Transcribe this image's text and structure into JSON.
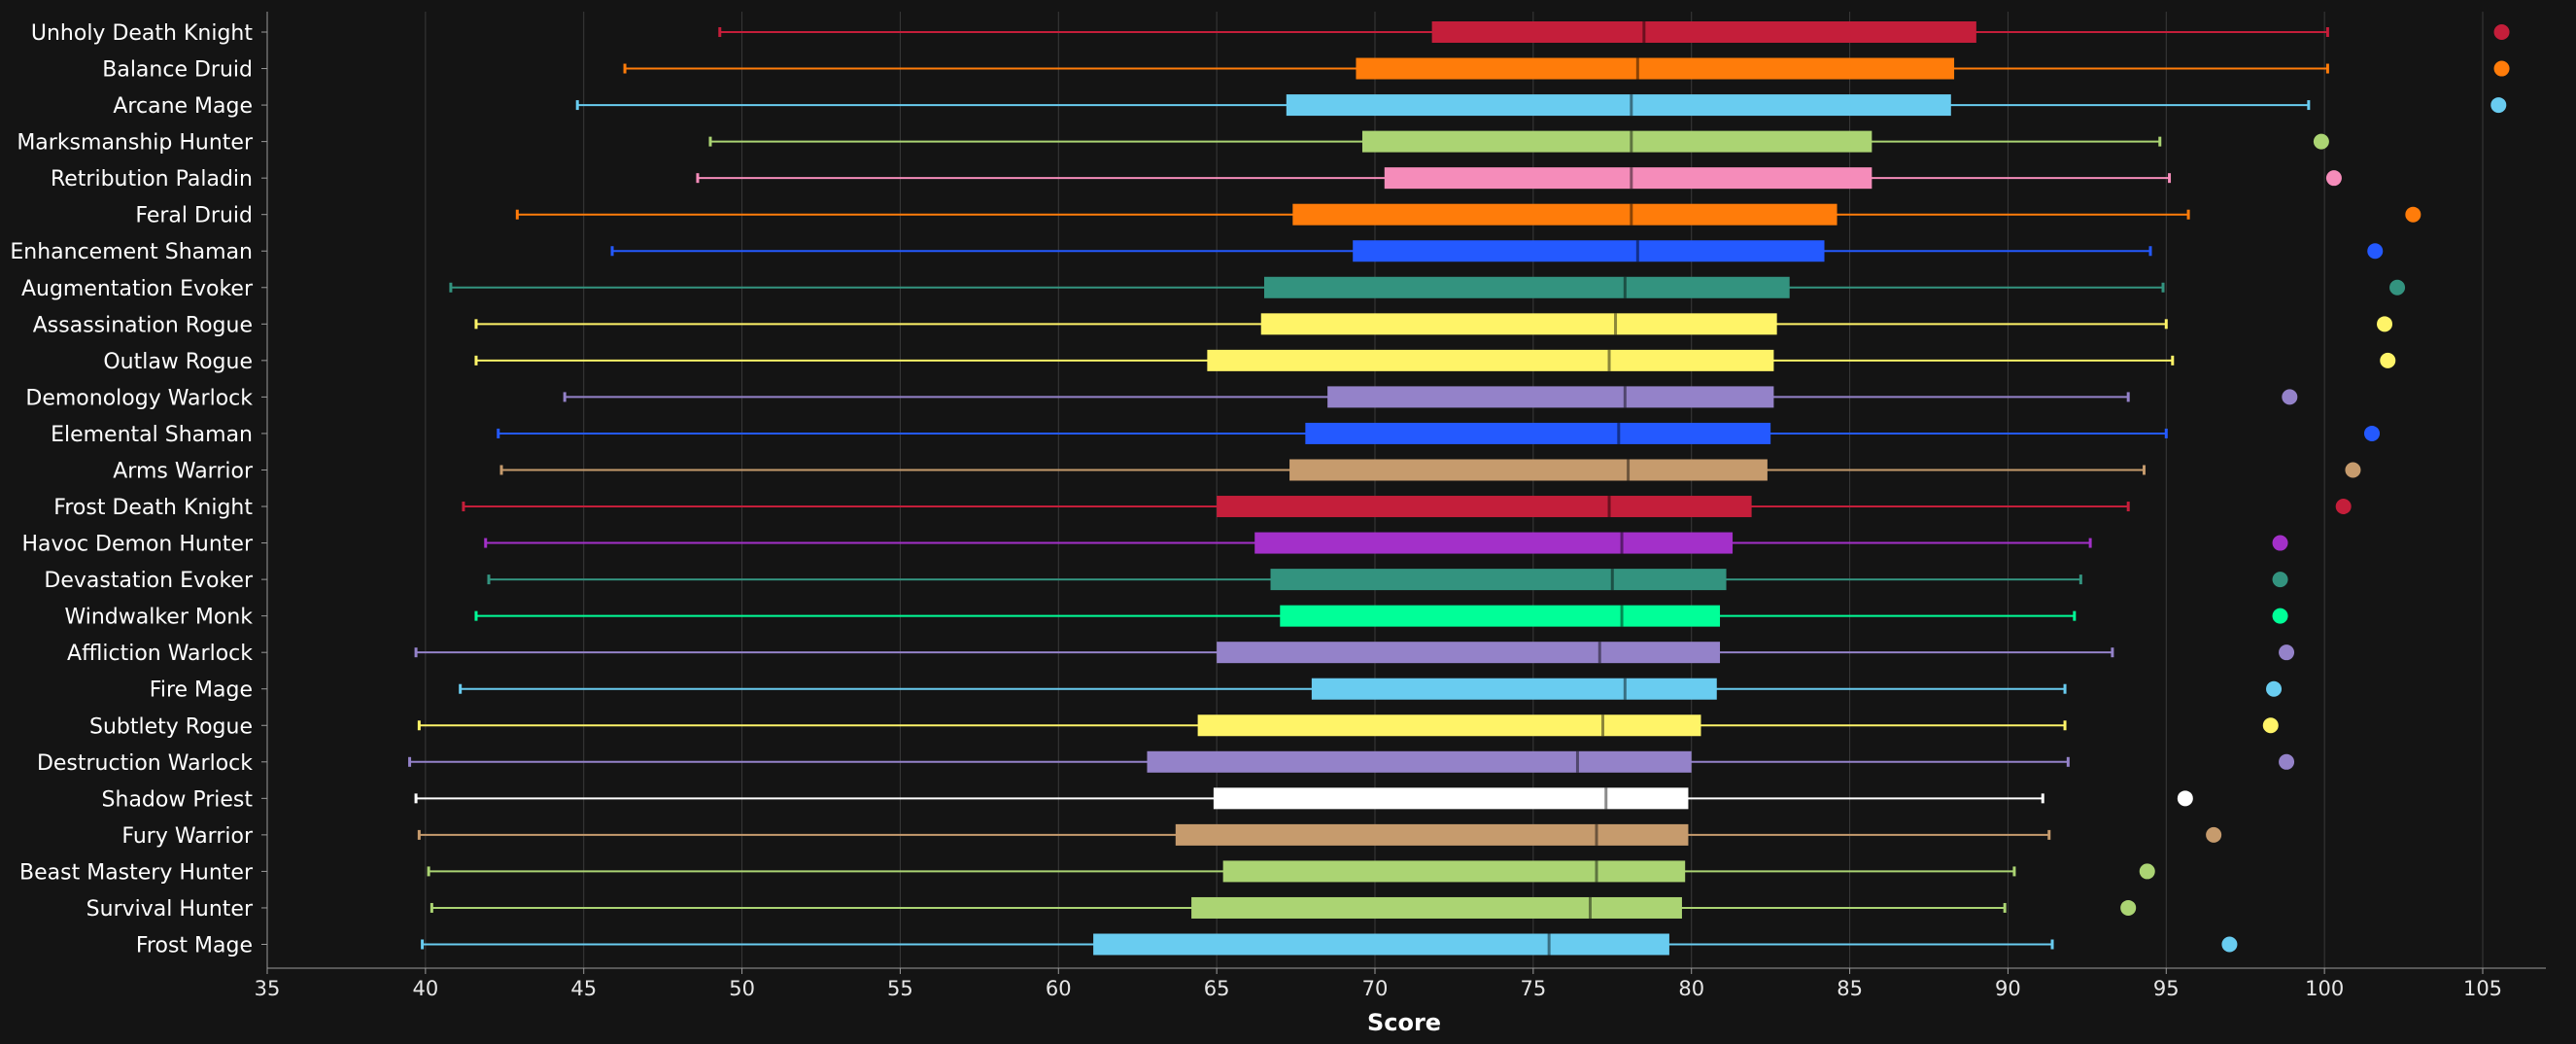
{
  "chart_data": {
    "type": "box",
    "xlabel": "Score",
    "xlim": [
      35,
      107
    ],
    "xticks": [
      35,
      40,
      45,
      50,
      55,
      60,
      65,
      70,
      75,
      80,
      85,
      90,
      95,
      100,
      105
    ],
    "grid": "vertical",
    "series": [
      {
        "name": "Unholy Death Knight",
        "min": 49.3,
        "q1": 71.8,
        "median": 78.5,
        "q3": 89.0,
        "max": 100.1,
        "outlier": 105.6,
        "color": "#C41E3A"
      },
      {
        "name": "Balance Druid",
        "min": 46.3,
        "q1": 69.4,
        "median": 78.3,
        "q3": 88.3,
        "max": 100.1,
        "outlier": 105.6,
        "color": "#FF7C0A"
      },
      {
        "name": "Arcane Mage",
        "min": 44.8,
        "q1": 67.2,
        "median": 78.1,
        "q3": 88.2,
        "max": 99.5,
        "outlier": 105.5,
        "color": "#69CCF0"
      },
      {
        "name": "Marksmanship Hunter",
        "min": 49.0,
        "q1": 69.6,
        "median": 78.1,
        "q3": 85.7,
        "max": 94.8,
        "outlier": 99.9,
        "color": "#ABD473"
      },
      {
        "name": "Retribution Paladin",
        "min": 48.6,
        "q1": 70.3,
        "median": 78.1,
        "q3": 85.7,
        "max": 95.1,
        "outlier": 100.3,
        "color": "#F58CBA"
      },
      {
        "name": "Feral Druid",
        "min": 42.9,
        "q1": 67.4,
        "median": 78.1,
        "q3": 84.6,
        "max": 95.7,
        "outlier": 102.8,
        "color": "#FF7C0A"
      },
      {
        "name": "Enhancement Shaman",
        "min": 45.9,
        "q1": 69.3,
        "median": 78.3,
        "q3": 84.2,
        "max": 94.5,
        "outlier": 101.6,
        "color": "#2459FF"
      },
      {
        "name": "Augmentation Evoker",
        "min": 40.8,
        "q1": 66.5,
        "median": 77.9,
        "q3": 83.1,
        "max": 94.9,
        "outlier": 102.3,
        "color": "#33937F"
      },
      {
        "name": "Assassination Rogue",
        "min": 41.6,
        "q1": 66.4,
        "median": 77.6,
        "q3": 82.7,
        "max": 95.0,
        "outlier": 101.9,
        "color": "#FFF468"
      },
      {
        "name": "Outlaw Rogue",
        "min": 41.6,
        "q1": 64.7,
        "median": 77.4,
        "q3": 82.6,
        "max": 95.2,
        "outlier": 102.0,
        "color": "#FFF468"
      },
      {
        "name": "Demonology Warlock",
        "min": 44.4,
        "q1": 68.5,
        "median": 77.9,
        "q3": 82.6,
        "max": 93.8,
        "outlier": 98.9,
        "color": "#9482C9"
      },
      {
        "name": "Elemental Shaman",
        "min": 42.3,
        "q1": 67.8,
        "median": 77.7,
        "q3": 82.5,
        "max": 95.0,
        "outlier": 101.5,
        "color": "#2459FF"
      },
      {
        "name": "Arms Warrior",
        "min": 42.4,
        "q1": 67.3,
        "median": 78.0,
        "q3": 82.4,
        "max": 94.3,
        "outlier": 100.9,
        "color": "#C69B6D"
      },
      {
        "name": "Frost Death Knight",
        "min": 41.2,
        "q1": 65.0,
        "median": 77.4,
        "q3": 81.9,
        "max": 93.8,
        "outlier": 100.6,
        "color": "#C41E3A"
      },
      {
        "name": "Havoc Demon Hunter",
        "min": 41.9,
        "q1": 66.2,
        "median": 77.8,
        "q3": 81.3,
        "max": 92.6,
        "outlier": 98.6,
        "color": "#A330C9"
      },
      {
        "name": "Devastation Evoker",
        "min": 42.0,
        "q1": 66.7,
        "median": 77.5,
        "q3": 81.1,
        "max": 92.3,
        "outlier": 98.6,
        "color": "#33937F"
      },
      {
        "name": "Windwalker Monk",
        "min": 41.6,
        "q1": 67.0,
        "median": 77.8,
        "q3": 80.9,
        "max": 92.1,
        "outlier": 98.6,
        "color": "#00FF98"
      },
      {
        "name": "Affliction Warlock",
        "min": 39.7,
        "q1": 65.0,
        "median": 77.1,
        "q3": 80.9,
        "max": 93.3,
        "outlier": 98.8,
        "color": "#9482C9"
      },
      {
        "name": "Fire Mage",
        "min": 41.1,
        "q1": 68.0,
        "median": 77.9,
        "q3": 80.8,
        "max": 91.8,
        "outlier": 98.4,
        "color": "#69CCF0"
      },
      {
        "name": "Subtlety Rogue",
        "min": 39.8,
        "q1": 64.4,
        "median": 77.2,
        "q3": 80.3,
        "max": 91.8,
        "outlier": 98.3,
        "color": "#FFF468"
      },
      {
        "name": "Destruction Warlock",
        "min": 39.5,
        "q1": 62.8,
        "median": 76.4,
        "q3": 80.0,
        "max": 91.9,
        "outlier": 98.8,
        "color": "#9482C9"
      },
      {
        "name": "Shadow Priest",
        "min": 39.7,
        "q1": 64.9,
        "median": 77.3,
        "q3": 79.9,
        "max": 91.1,
        "outlier": 95.6,
        "color": "#FFFFFF"
      },
      {
        "name": "Fury Warrior",
        "min": 39.8,
        "q1": 63.7,
        "median": 77.0,
        "q3": 79.9,
        "max": 91.3,
        "outlier": 96.5,
        "color": "#C69B6D"
      },
      {
        "name": "Beast Mastery Hunter",
        "min": 40.1,
        "q1": 65.2,
        "median": 77.0,
        "q3": 79.8,
        "max": 90.2,
        "outlier": 94.4,
        "color": "#ABD473"
      },
      {
        "name": "Survival Hunter",
        "min": 40.2,
        "q1": 64.2,
        "median": 76.8,
        "q3": 79.7,
        "max": 89.9,
        "outlier": 93.8,
        "color": "#ABD473"
      },
      {
        "name": "Frost Mage",
        "min": 39.9,
        "q1": 61.1,
        "median": 75.5,
        "q3": 79.3,
        "max": 91.4,
        "outlier": 97.0,
        "color": "#69CCF0"
      }
    ]
  }
}
